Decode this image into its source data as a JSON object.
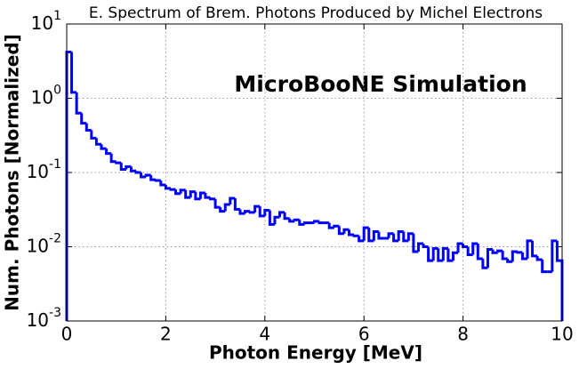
{
  "chart_data": {
    "type": "histogram",
    "title": "E. Spectrum of Brem. Photons Produced by Michel Electrons",
    "annotation": "MicroBooNE Simulation",
    "x_label": "Photon Energy [MeV]",
    "y_label": "Num. Photons [Normalized]",
    "bins": [
      0,
      0.1,
      0.2,
      0.3,
      0.4,
      0.5,
      0.6,
      0.7,
      0.8,
      0.9,
      1,
      1.1,
      1.2,
      1.3,
      1.4,
      1.5,
      1.6,
      1.7,
      1.8,
      1.9,
      2,
      2.1,
      2.2,
      2.3,
      2.4,
      2.5,
      2.6,
      2.7,
      2.8,
      2.9,
      3,
      3.1,
      3.2,
      3.3,
      3.4,
      3.5,
      3.6,
      3.7,
      3.8,
      3.9,
      4,
      4.1,
      4.2,
      4.3,
      4.4,
      4.5,
      4.6,
      4.7,
      4.8,
      4.9,
      5,
      5.1,
      5.2,
      5.3,
      5.4,
      5.5,
      5.6,
      5.7,
      5.8,
      5.9,
      6,
      6.1,
      6.2,
      6.3,
      6.4,
      6.5,
      6.6,
      6.7,
      6.8,
      6.9,
      7,
      7.1,
      7.2,
      7.3,
      7.4,
      7.5,
      7.6,
      7.7,
      7.8,
      7.9,
      8,
      8.1,
      8.2,
      8.3,
      8.4,
      8.5,
      8.6,
      8.7,
      8.8,
      8.9,
      9,
      9.1,
      9.2,
      9.3,
      9.4,
      9.5,
      9.6,
      9.7,
      9.8,
      9.9,
      10
    ],
    "values": [
      4.2,
      1.2,
      0.63,
      0.46,
      0.37,
      0.29,
      0.24,
      0.21,
      0.18,
      0.14,
      0.135,
      0.11,
      0.12,
      0.105,
      0.1,
      0.087,
      0.092,
      0.08,
      0.078,
      0.068,
      0.061,
      0.059,
      0.052,
      0.058,
      0.046,
      0.055,
      0.044,
      0.053,
      0.046,
      0.044,
      0.034,
      0.03,
      0.037,
      0.045,
      0.032,
      0.028,
      0.03,
      0.029,
      0.035,
      0.026,
      0.031,
      0.02,
      0.025,
      0.029,
      0.024,
      0.022,
      0.023,
      0.02,
      0.021,
      0.021,
      0.022,
      0.021,
      0.021,
      0.018,
      0.019,
      0.015,
      0.017,
      0.0145,
      0.014,
      0.012,
      0.018,
      0.012,
      0.016,
      0.013,
      0.013,
      0.015,
      0.012,
      0.016,
      0.012,
      0.015,
      0.0086,
      0.011,
      0.01,
      0.0065,
      0.0095,
      0.0065,
      0.0095,
      0.0065,
      0.0083,
      0.011,
      0.01,
      0.0078,
      0.011,
      0.0069,
      0.0052,
      0.0092,
      0.0083,
      0.0088,
      0.0069,
      0.0063,
      0.0086,
      0.0084,
      0.0069,
      0.012,
      0.0075,
      0.0067,
      0.0046,
      0.0046,
      0.012,
      0.0065
    ],
    "color": "#0000ff",
    "xlim": [
      0,
      10
    ],
    "xticks": [
      0,
      2,
      4,
      6,
      8,
      10
    ],
    "ylim": [
      0.001,
      10
    ],
    "y_scale": "log",
    "yticks": [
      {
        "value": 0.001,
        "label": "10^-3"
      },
      {
        "value": 0.01,
        "label": "10^-2"
      },
      {
        "value": 0.1,
        "label": "10^-1"
      },
      {
        "value": 1,
        "label": "10^0"
      },
      {
        "value": 10,
        "label": "10^1"
      }
    ],
    "grid": true
  }
}
